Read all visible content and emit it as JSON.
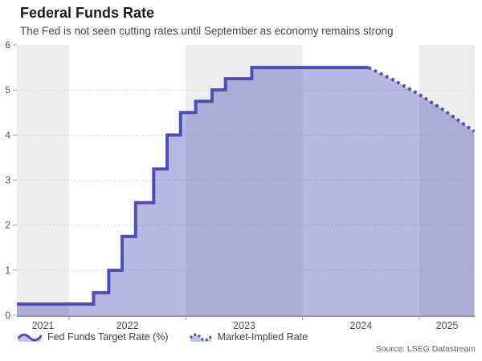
{
  "header": {
    "title": "Federal Funds Rate",
    "subtitle": "The Fed is not seen cutting rates until September as economy remains strong"
  },
  "source_note": "Source: LSEG Datastream",
  "legend": {
    "items": [
      {
        "label": "Fed Funds Target Rate (%)",
        "style": "solid"
      },
      {
        "label": "Market-Implied Rate",
        "style": "dotted"
      }
    ]
  },
  "colors": {
    "line": "#504eb4",
    "area_fill": "rgba(85,83,190,0.42)",
    "band_gray": "#ededed",
    "band_white": "#ffffff",
    "grid": "#cfcfcf",
    "axis": "#9a9a9a",
    "tick_label": "#555555"
  },
  "chart_data": {
    "type": "area",
    "subtype": "step-area with dotted forecast line",
    "title": "Federal Funds Rate",
    "subtitle": "The Fed is not seen cutting rates until September as economy remains strong",
    "xlabel": "",
    "ylabel": "",
    "ylim": [
      0,
      6
    ],
    "y_ticks": [
      0,
      1,
      2,
      3,
      4,
      5,
      6
    ],
    "x_domain": [
      2021.553,
      2025.475
    ],
    "year_boundaries": [
      2022,
      2023,
      2024,
      2025
    ],
    "x_tick_labels": [
      "2021",
      "2022",
      "2023",
      "2024",
      "2025"
    ],
    "grid": "horizontal dotted lines at integer values",
    "background_bands": "alternating gray/white per calendar year, first (partial 2021) gray",
    "legend_position": "bottom-left",
    "series": [
      {
        "name": "Fed Funds Target Rate (%)",
        "draw": "step",
        "line_style": "solid",
        "points": [
          [
            2021.553,
            0.25
          ],
          [
            2022.21,
            0.5
          ],
          [
            2022.34,
            1.0
          ],
          [
            2022.455,
            1.75
          ],
          [
            2022.57,
            2.5
          ],
          [
            2022.725,
            3.25
          ],
          [
            2022.84,
            4.0
          ],
          [
            2022.955,
            4.5
          ],
          [
            2023.085,
            4.75
          ],
          [
            2023.225,
            5.0
          ],
          [
            2023.34,
            5.25
          ],
          [
            2023.565,
            5.5
          ],
          [
            2024.565,
            5.5
          ]
        ]
      },
      {
        "name": "Market-Implied Rate",
        "draw": "line",
        "line_style": "dotted",
        "points": [
          [
            2024.565,
            5.5
          ],
          [
            2024.78,
            5.22
          ],
          [
            2025.0,
            4.9
          ],
          [
            2025.24,
            4.5
          ],
          [
            2025.47,
            4.08
          ]
        ]
      }
    ]
  }
}
